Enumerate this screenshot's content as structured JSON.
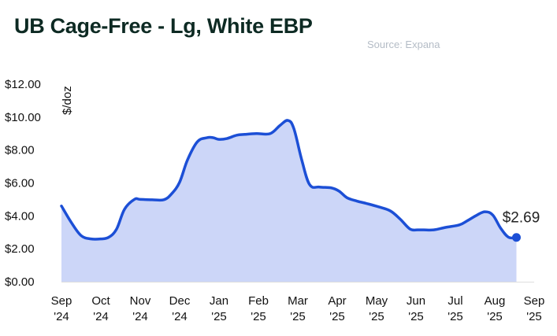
{
  "title": "UB Cage-Free - Lg, White EBP",
  "source": "Source: Expana",
  "chart_data": {
    "type": "area",
    "title": "UB Cage-Free - Lg, White EBP",
    "ylabel": "$/doz",
    "xlabel": "",
    "ylim": [
      0,
      12
    ],
    "yticks": [
      {
        "value": 0,
        "label": "$0.00"
      },
      {
        "value": 2,
        "label": "$2.00"
      },
      {
        "value": 4,
        "label": "$4.00"
      },
      {
        "value": 6,
        "label": "$6.00"
      },
      {
        "value": 8,
        "label": "$8.00"
      },
      {
        "value": 10,
        "label": "$10.00"
      },
      {
        "value": 12,
        "label": "$12.00"
      }
    ],
    "xlim": [
      0,
      12
    ],
    "xticks": [
      {
        "value": 0,
        "line1": "Sep",
        "line2": "'24"
      },
      {
        "value": 1,
        "line1": "Oct",
        "line2": "'24"
      },
      {
        "value": 2,
        "line1": "Nov",
        "line2": "'24"
      },
      {
        "value": 3,
        "line1": "Dec",
        "line2": "'24"
      },
      {
        "value": 4,
        "line1": "Jan",
        "line2": "'25"
      },
      {
        "value": 5,
        "line1": "Feb",
        "line2": "'25"
      },
      {
        "value": 6,
        "line1": "Mar",
        "line2": "'25"
      },
      {
        "value": 7,
        "line1": "Apr",
        "line2": "'25"
      },
      {
        "value": 8,
        "line1": "May",
        "line2": "'25"
      },
      {
        "value": 9,
        "line1": "Jun",
        "line2": "'25"
      },
      {
        "value": 10,
        "line1": "Jul",
        "line2": "'25"
      },
      {
        "value": 11,
        "line1": "Aug",
        "line2": "'25"
      },
      {
        "value": 12,
        "line1": "Sep",
        "line2": "'25"
      }
    ],
    "grid": false,
    "legend": "none",
    "line_color": "#1c4fd6",
    "fill_color": "#ccd6f8",
    "series": [
      {
        "x": [
          0,
          0.25,
          0.5,
          0.75,
          1.0,
          1.2,
          1.4,
          1.6,
          1.85,
          2.0,
          2.3,
          2.6,
          2.8,
          3.0,
          3.2,
          3.45,
          3.7,
          3.85,
          4.0,
          4.2,
          4.45,
          4.65,
          4.95,
          5.3,
          5.55,
          5.75,
          5.9,
          6.1,
          6.3,
          6.55,
          6.85,
          7.05,
          7.25,
          7.5,
          7.75,
          8.05,
          8.35,
          8.6,
          8.85,
          9.05,
          9.2,
          9.45,
          9.75,
          10.1,
          10.3,
          10.55,
          10.75,
          10.95,
          11.15,
          11.35,
          11.55
        ],
        "y": [
          4.6,
          3.6,
          2.8,
          2.6,
          2.6,
          2.7,
          3.2,
          4.4,
          5.0,
          5.0,
          4.98,
          4.98,
          5.35,
          6.05,
          7.4,
          8.5,
          8.75,
          8.75,
          8.65,
          8.7,
          8.9,
          8.95,
          9.0,
          9.0,
          9.5,
          9.8,
          9.3,
          7.4,
          5.9,
          5.75,
          5.7,
          5.5,
          5.1,
          4.9,
          4.75,
          4.55,
          4.3,
          3.8,
          3.2,
          3.15,
          3.15,
          3.15,
          3.3,
          3.45,
          3.7,
          4.05,
          4.25,
          4.05,
          3.25,
          2.7,
          2.69
        ]
      }
    ],
    "end_label": "$2.69"
  }
}
